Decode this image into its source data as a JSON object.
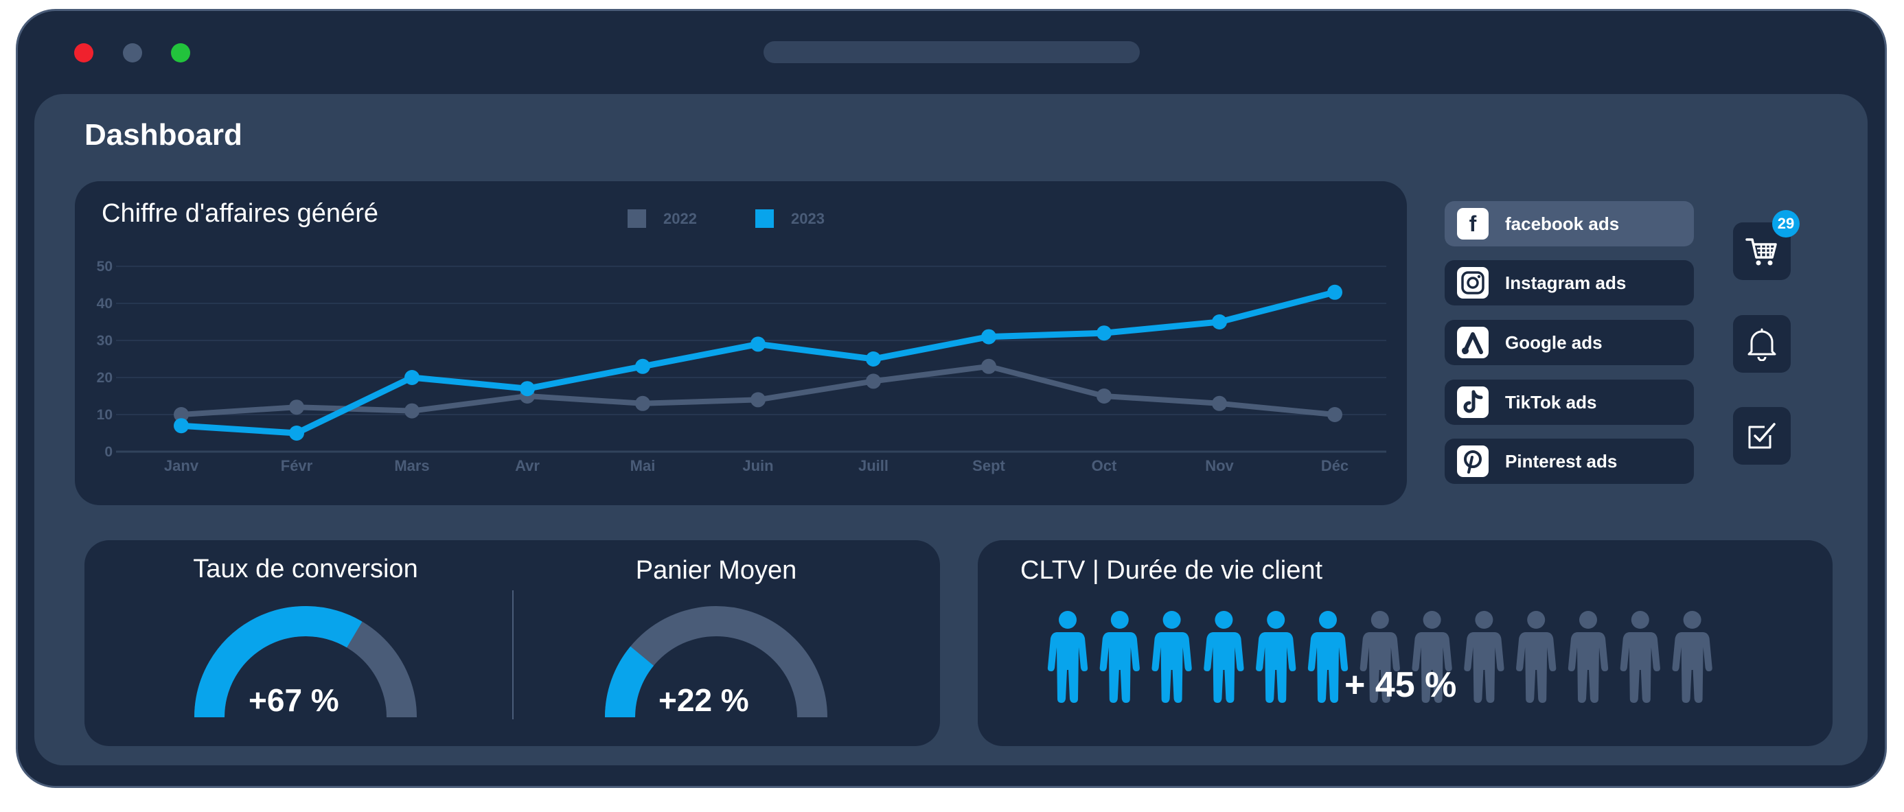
{
  "page": {
    "title": "Dashboard"
  },
  "revenue_chart": {
    "title": "Chiffre d'affaires généré"
  },
  "chart_data": {
    "type": "line",
    "x": [
      "Janv",
      "Févr",
      "Mars",
      "Avr",
      "Mai",
      "Juin",
      "Juill",
      "Sept",
      "Oct",
      "Nov",
      "Déc"
    ],
    "series": [
      {
        "name": "2022",
        "color": "#4a5c78",
        "values": [
          10,
          12,
          11,
          15,
          13,
          14,
          19,
          23,
          15,
          13,
          10
        ]
      },
      {
        "name": "2023",
        "color": "#08a4ec",
        "values": [
          7,
          5,
          20,
          17,
          23,
          29,
          25,
          31,
          32,
          35,
          43
        ]
      }
    ],
    "ylim": [
      0,
      50
    ],
    "yticks": [
      "0",
      "10",
      "20",
      "30",
      "40",
      "50"
    ],
    "grid": true,
    "legend": "top-center"
  },
  "ads": [
    {
      "label": "facebook ads",
      "icon": "facebook-icon",
      "active": true
    },
    {
      "label": "Instagram ads",
      "icon": "instagram-icon",
      "active": false
    },
    {
      "label": "Google ads",
      "icon": "google-ads-icon",
      "active": false
    },
    {
      "label": "TikTok ads",
      "icon": "tiktok-icon",
      "active": false
    },
    {
      "label": "Pinterest ads",
      "icon": "pinterest-icon",
      "active": false
    }
  ],
  "side_buttons": {
    "cart_badge": "29",
    "icons": [
      "cart-icon",
      "bell-icon",
      "checkbox-icon"
    ]
  },
  "conversion": {
    "title": "Taux de conversion",
    "value": "+67 %",
    "fraction": 0.67
  },
  "basket": {
    "title": "Panier Moyen",
    "value": "+22 %",
    "fraction": 0.22
  },
  "cltv": {
    "title": "CLTV | Durée de vie client",
    "value": "+ 45 %",
    "people_total": 13,
    "people_highlighted": 6
  },
  "colors": {
    "accent": "#08a4ec",
    "muted": "#4a5c78",
    "panel": "#1b2940",
    "screen": "#31435c"
  }
}
